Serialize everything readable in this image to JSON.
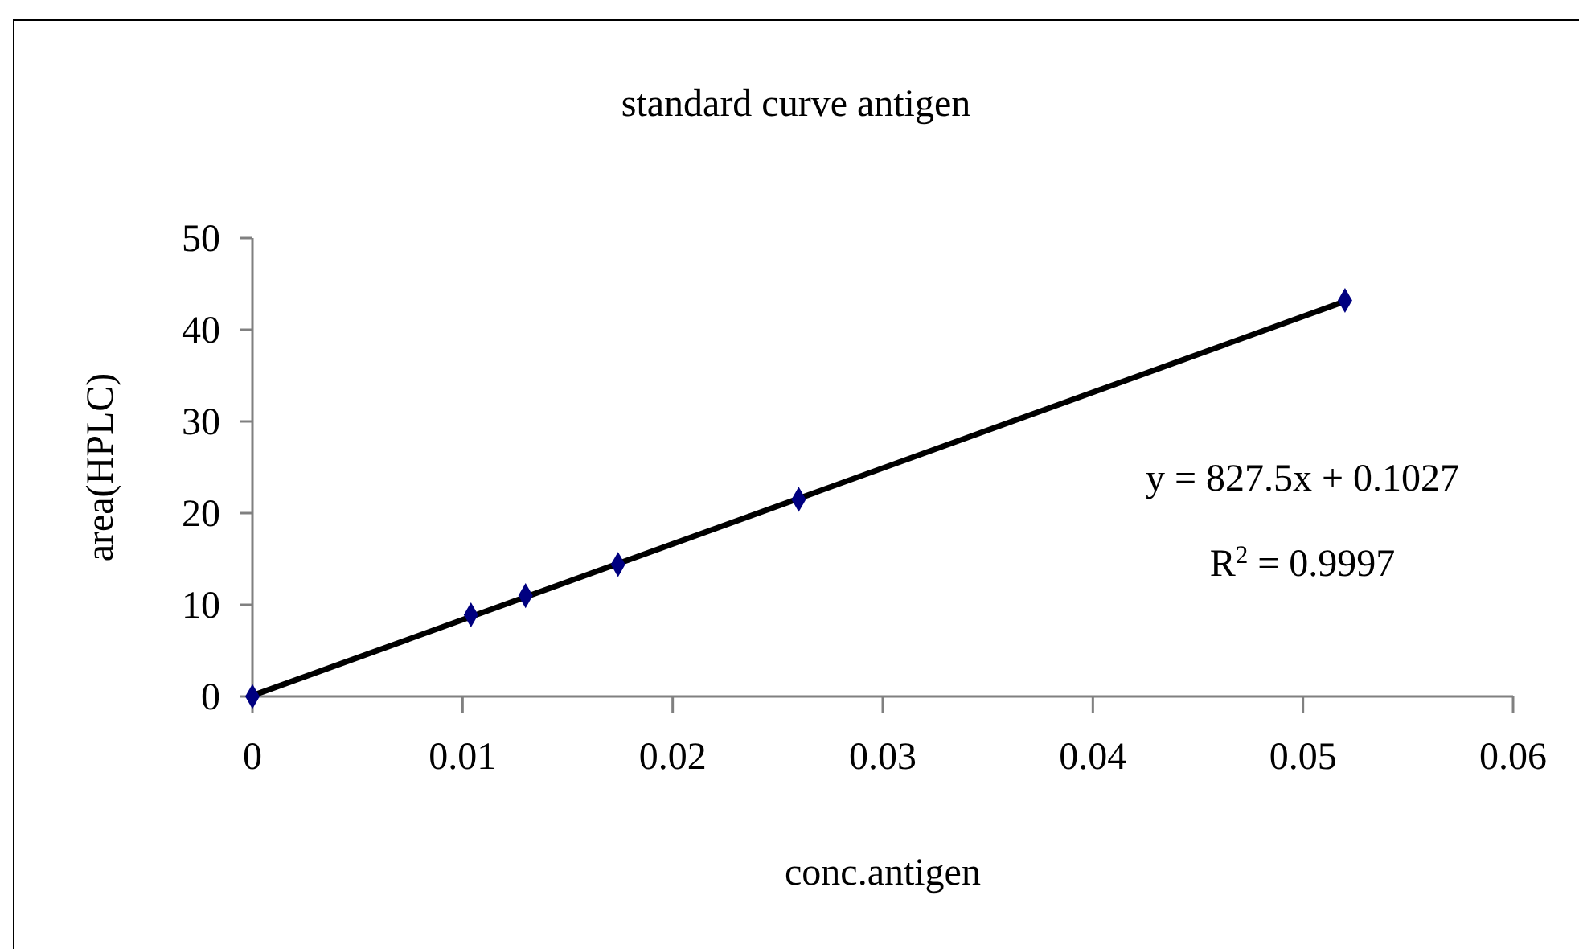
{
  "chart_data": {
    "type": "scatter",
    "title": "standard curve antigen",
    "xlabel": "conc.antigen",
    "ylabel": "area(HPLC)",
    "xlim": [
      0,
      0.06
    ],
    "xticks": [
      0,
      0.01,
      0.02,
      0.03,
      0.04,
      0.05,
      0.06
    ],
    "ylim": [
      0,
      50
    ],
    "yticks": [
      0,
      10,
      20,
      30,
      40,
      50
    ],
    "grid": false,
    "marker": "diamond",
    "series": [
      {
        "type": "scatter",
        "color": "#000080",
        "x": [
          0,
          0.0104,
          0.013,
          0.0174,
          0.026,
          0.052
        ],
        "values": [
          0,
          8.9,
          11.0,
          14.4,
          21.5,
          43.2
        ]
      },
      {
        "type": "line",
        "color": "#000000",
        "x": [
          0,
          0.052
        ],
        "values": [
          0.1,
          43.1
        ],
        "marker": "none",
        "line_style": "solid"
      }
    ],
    "annotations": [
      "y = 827.5x + 0.1027",
      "R$^{2}$ = 0.9997"
    ]
  }
}
